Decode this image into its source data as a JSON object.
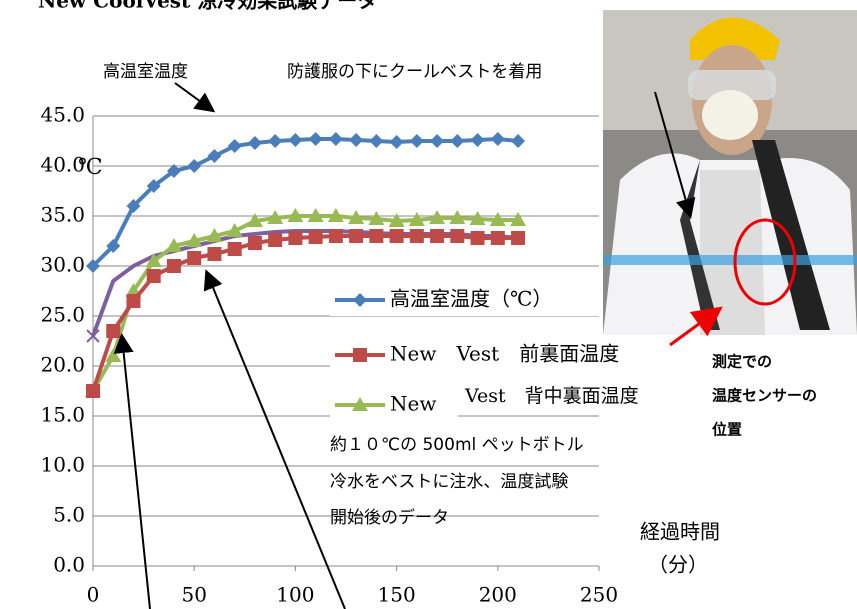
{
  "chart_data": {
    "type": "line",
    "title": "New CoolVest 涼冷効果試験データ",
    "y_label": "℃",
    "x_label": "経過時間",
    "x_unit": "（分）",
    "annotations": [
      "高温室温度",
      "防護服の下にクールベストを着用",
      "約１０℃の 500ml ペットボトル",
      "冷水をベストに注水、温度試験",
      "開始後のデータ",
      "測定での",
      "温度センサーの",
      "位置",
      "Vest　背中裏面温度"
    ],
    "x": [
      0,
      10,
      20,
      30,
      40,
      50,
      60,
      70,
      80,
      90,
      100,
      110,
      120,
      130,
      140,
      150,
      160,
      170,
      180,
      190,
      200,
      210
    ],
    "series": [
      {
        "name": "高温室温度（℃）",
        "color": "#4a7ebb",
        "marker": "diamond",
        "values": [
          30,
          32,
          36,
          38,
          39.5,
          40,
          41,
          42,
          42.3,
          42.5,
          42.6,
          42.7,
          42.7,
          42.6,
          42.5,
          42.4,
          42.5,
          42.5,
          42.5,
          42.6,
          42.7,
          42.5
        ]
      },
      {
        "name": "New　Vest　前裏面温度",
        "color": "#be4b48",
        "marker": "square",
        "values": [
          17.5,
          23.5,
          26.5,
          29,
          30,
          30.8,
          31.2,
          31.7,
          32.3,
          32.6,
          32.8,
          32.9,
          33,
          33,
          33,
          33,
          33,
          33,
          33,
          32.8,
          32.8,
          32.8
        ]
      },
      {
        "name": "New",
        "color": "#98b954",
        "marker": "triangle",
        "values": [
          17.5,
          21,
          27.5,
          30.5,
          32,
          32.5,
          33,
          33.5,
          34.5,
          34.8,
          35,
          35,
          35,
          34.8,
          34.7,
          34.5,
          34.6,
          34.8,
          34.8,
          34.7,
          34.6,
          34.6
        ]
      },
      {
        "color": "#7d60a0",
        "marker": "x",
        "values": [
          23,
          28.5,
          30,
          31,
          31.5,
          32,
          32.5,
          33,
          33.2,
          33.4,
          33.5,
          33.5,
          33.5,
          33.4,
          33.3,
          33.2,
          33.2,
          33.2,
          33.2,
          33,
          33,
          32.8
        ]
      }
    ],
    "xlim": [
      0,
      250
    ],
    "xticks": [
      0,
      50,
      100,
      150,
      200,
      250
    ],
    "ylim": [
      0,
      45
    ],
    "yticks": [
      {
        "value": 0,
        "label": "0.0"
      },
      {
        "value": 5,
        "label": "5.0"
      },
      {
        "value": 10,
        "label": "10.0"
      },
      {
        "value": 15,
        "label": "15.0"
      },
      {
        "value": 20,
        "label": "20.0"
      },
      {
        "value": 25,
        "label": "25.0"
      },
      {
        "value": 30,
        "label": "30.0"
      },
      {
        "value": 35,
        "label": "35.0"
      },
      {
        "value": 40,
        "label": "40.0"
      },
      {
        "value": 45,
        "label": "45.0"
      }
    ],
    "grid": true,
    "legend": "right"
  }
}
